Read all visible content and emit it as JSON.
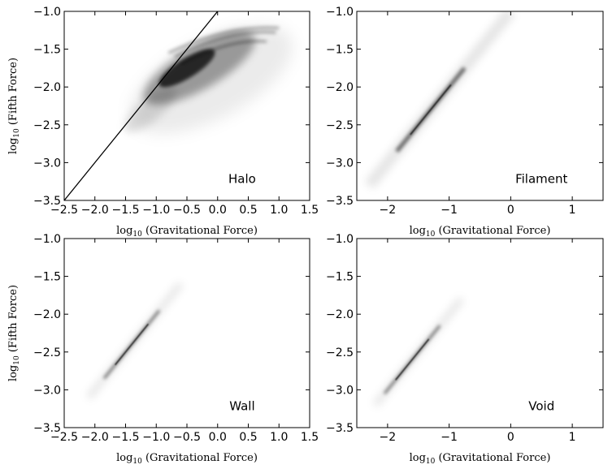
{
  "chart_data": [
    {
      "panel": "top-left",
      "type": "heatmap",
      "annotation": "Halo",
      "xlabel": {
        "base": "log",
        "sub": "10",
        "rest": " (Gravitational Force)"
      },
      "ylabel": {
        "base": "log",
        "sub": "10",
        "rest": " (Fifth Force)"
      },
      "xlim": [
        -2.5,
        1.5
      ],
      "ylim": [
        -3.5,
        -1.0
      ],
      "xticks": [
        -2.5,
        -2.0,
        -1.5,
        -1.0,
        -0.5,
        0.0,
        0.5,
        1.0,
        1.5
      ],
      "xtick_labels": [
        "−2.5",
        "−2.0",
        "−1.5",
        "−1.0",
        "−0.5",
        "0.0",
        "0.5",
        "1.0",
        "1.5"
      ],
      "yticks": [
        -1.0,
        -1.5,
        -2.0,
        -2.5,
        -3.0,
        -3.5
      ],
      "ytick_labels": [
        "−1.0",
        "−1.5",
        "−2.0",
        "−2.5",
        "−3.0",
        "−3.5"
      ],
      "line": {
        "x": [
          -2.5,
          0.0
        ],
        "y": [
          -3.5,
          -1.0
        ]
      },
      "density": {
        "x_range": [
          -1.5,
          1.2
        ],
        "peak": [
          -0.3,
          -1.75
        ],
        "shape": "cloud below line"
      }
    },
    {
      "panel": "top-right",
      "type": "heatmap",
      "annotation": "Filament",
      "xlabel": {
        "base": "log",
        "sub": "10",
        "rest": " (Gravitational Force)"
      },
      "ylabel": null,
      "xlim": [
        -2.5,
        1.5
      ],
      "ylim": [
        -3.5,
        -1.0
      ],
      "xticks": [
        -2,
        -1,
        0,
        1
      ],
      "xtick_labels": [
        "−2",
        "−1",
        "0",
        "1"
      ],
      "yticks": [
        -1.0,
        -1.5,
        -2.0,
        -2.5,
        -3.0,
        -3.5
      ],
      "ytick_labels": [
        "−1.0",
        "−1.5",
        "−2.0",
        "−2.5",
        "−3.0",
        "−3.5"
      ],
      "density": {
        "x_range": [
          -2.3,
          0.0
        ],
        "peak": [
          -1.3,
          -2.2
        ],
        "shape": "narrow band along y = x - 1"
      }
    },
    {
      "panel": "bottom-left",
      "type": "heatmap",
      "annotation": "Wall",
      "xlabel": {
        "base": "log",
        "sub": "10",
        "rest": " (Gravitational Force)"
      },
      "ylabel": {
        "base": "log",
        "sub": "10",
        "rest": " (Fifth Force)"
      },
      "xlim": [
        -2.5,
        1.5
      ],
      "ylim": [
        -3.5,
        -1.0
      ],
      "xticks": [
        -2.5,
        -2.0,
        -1.5,
        -1.0,
        -0.5,
        0.0,
        0.5,
        1.0,
        1.5
      ],
      "xtick_labels": [
        "−2.5",
        "−2.0",
        "−1.5",
        "−1.0",
        "−0.5",
        "0.0",
        "0.5",
        "1.0",
        "1.5"
      ],
      "yticks": [
        -1.0,
        -1.5,
        -2.0,
        -2.5,
        -3.0,
        -3.5
      ],
      "ytick_labels": [
        "−1.0",
        "−1.5",
        "−2.0",
        "−2.5",
        "−3.0",
        "−3.5"
      ],
      "density": {
        "x_range": [
          -2.1,
          -0.6
        ],
        "peak": [
          -1.4,
          -2.4
        ],
        "shape": "thin line along y = x - 1"
      }
    },
    {
      "panel": "bottom-right",
      "type": "heatmap",
      "annotation": "Void",
      "xlabel": {
        "base": "log",
        "sub": "10",
        "rest": " (Gravitational Force)"
      },
      "ylabel": null,
      "xlim": [
        -2.5,
        1.5
      ],
      "ylim": [
        -3.5,
        -1.0
      ],
      "xticks": [
        -2,
        -1,
        0,
        1
      ],
      "xtick_labels": [
        "−2",
        "−1",
        "0",
        "1"
      ],
      "yticks": [
        -1.0,
        -1.5,
        -2.0,
        -2.5,
        -3.0,
        -3.5
      ],
      "ytick_labels": [
        "−1.0",
        "−1.5",
        "−2.0",
        "−2.5",
        "−3.0",
        "−3.5"
      ],
      "density": {
        "x_range": [
          -2.2,
          -0.8
        ],
        "peak": [
          -1.6,
          -2.6
        ],
        "shape": "thin line along y = x - 1"
      }
    }
  ]
}
